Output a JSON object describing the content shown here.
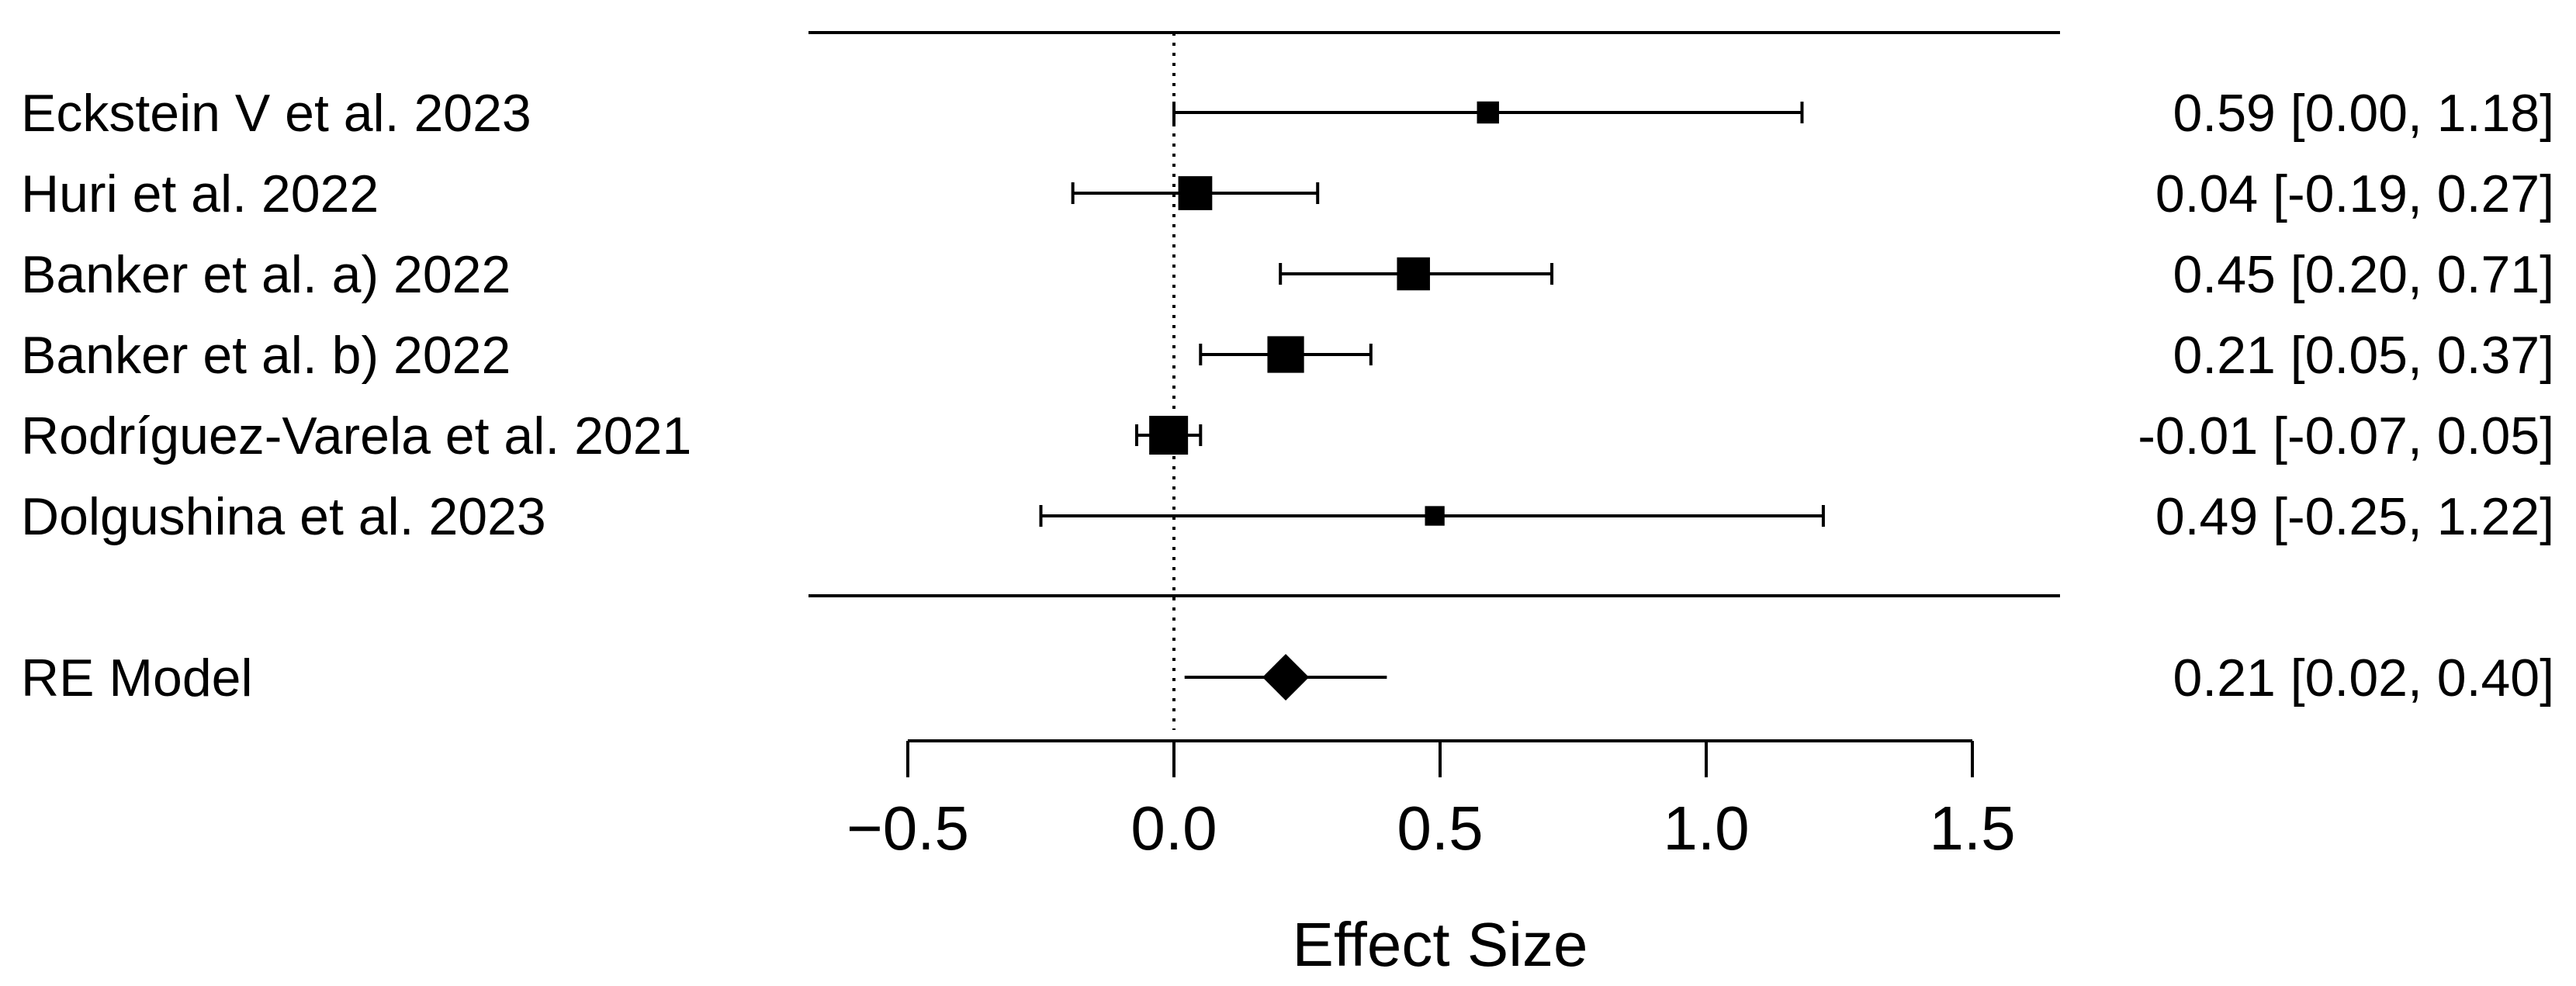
{
  "chart_data": {
    "type": "forest",
    "xlabel": "Effect Size",
    "xlim": [
      -0.5,
      1.5
    ],
    "ticks": [
      -0.5,
      0.0,
      0.5,
      1.0,
      1.5
    ],
    "tick_labels": [
      "−0.5",
      "0.0",
      "0.5",
      "1.0",
      "1.5"
    ],
    "reference_line": 0,
    "studies": [
      {
        "label": "Eckstein V et al. 2023",
        "estimate": 0.59,
        "ci_lower": 0.0,
        "ci_upper": 1.18,
        "weight": 3.3,
        "text": "0.59 [0.00, 1.18]"
      },
      {
        "label": "Huri et al. 2022",
        "estimate": 0.04,
        "ci_lower": -0.19,
        "ci_upper": 0.27,
        "weight": 20.1,
        "text": "0.04 [-0.19, 0.27]"
      },
      {
        "label": "Banker et al. a) 2022",
        "estimate": 0.45,
        "ci_lower": 0.2,
        "ci_upper": 0.71,
        "weight": 18.2,
        "text": "0.45 [0.20, 0.71]"
      },
      {
        "label": "Banker et al. b) 2022",
        "estimate": 0.21,
        "ci_lower": 0.05,
        "ci_upper": 0.37,
        "weight": 25.8,
        "text": "0.21 [0.05, 0.37]"
      },
      {
        "label": "Rodríguez-Varela et al. 2021",
        "estimate": -0.01,
        "ci_lower": -0.07,
        "ci_upper": 0.05,
        "weight": 31.0,
        "text": "-0.01 [-0.07, 0.05]"
      },
      {
        "label": "Dolgushina et al. 2023",
        "estimate": 0.49,
        "ci_lower": -0.25,
        "ci_upper": 1.22,
        "weight": 1.6,
        "text": "0.49 [-0.25, 1.22]"
      }
    ],
    "summary": {
      "label": "RE Model",
      "estimate": 0.21,
      "ci_lower": 0.02,
      "ci_upper": 0.4,
      "text": "0.21 [0.02, 0.40]"
    }
  }
}
